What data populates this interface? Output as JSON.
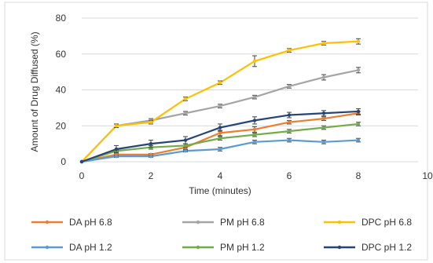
{
  "chart_data": {
    "type": "line",
    "title": "",
    "xlabel": "Time (minutes)",
    "ylabel": "Amount of Drug Diffused (%)",
    "xlim": [
      0,
      10
    ],
    "ylim": [
      0,
      80
    ],
    "xticks": [
      "0",
      "2",
      "4",
      "6",
      "8",
      "10"
    ],
    "yticks": [
      "0",
      "20",
      "40",
      "60",
      "80"
    ],
    "grid": "horizontal",
    "legend_position": "bottom",
    "x": [
      0,
      1,
      2,
      3,
      4,
      5,
      6,
      7,
      8
    ],
    "series": [
      {
        "name": "DA pH 6.8",
        "color": "#ED7D31",
        "values": [
          0,
          4,
          4,
          8,
          16,
          18,
          22,
          24,
          27
        ],
        "errors": [
          0,
          0.5,
          0.5,
          1,
          1.5,
          1.5,
          1,
          1,
          1
        ]
      },
      {
        "name": "PM pH 6.8",
        "color": "#A5A5A5",
        "values": [
          0,
          20,
          23,
          27,
          31,
          36,
          42,
          47,
          51
        ],
        "errors": [
          0,
          1,
          1,
          1,
          1,
          1,
          1,
          1.5,
          1.5
        ]
      },
      {
        "name": "DPC pH 6.8",
        "color": "#FFC000",
        "values": [
          0,
          20,
          22,
          35,
          44,
          56,
          62,
          66,
          67
        ],
        "errors": [
          0,
          1,
          1,
          1,
          1,
          3,
          1,
          1,
          1.5
        ]
      },
      {
        "name": "DA pH 1.2",
        "color": "#5B9BD5",
        "values": [
          0,
          3,
          3,
          6,
          7,
          11,
          12,
          11,
          12
        ],
        "errors": [
          0,
          0.5,
          0.5,
          0.5,
          1,
          1,
          1,
          1,
          1
        ]
      },
      {
        "name": "PM pH 1.2",
        "color": "#70AD47",
        "values": [
          0,
          6,
          8,
          9,
          13,
          15,
          17,
          19,
          21
        ],
        "errors": [
          0,
          0.5,
          1,
          1,
          1,
          1,
          1,
          1,
          1
        ]
      },
      {
        "name": "DPC pH 1.2",
        "color": "#264478",
        "values": [
          0,
          7,
          10,
          12,
          19,
          23,
          26,
          27,
          28
        ],
        "errors": [
          0,
          2,
          2,
          2,
          2,
          2,
          1.5,
          1.5,
          1.5
        ]
      }
    ]
  }
}
